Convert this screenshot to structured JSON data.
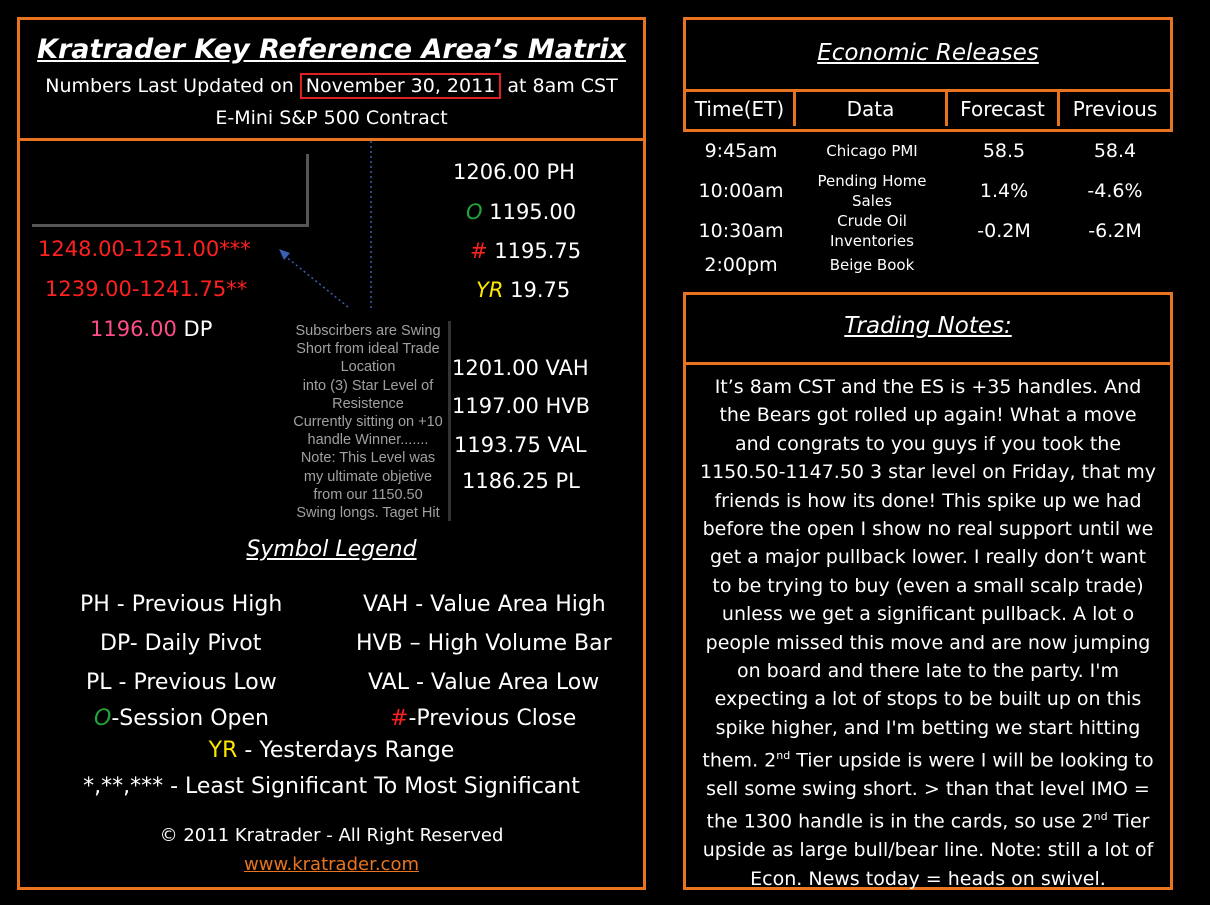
{
  "matrix": {
    "title": "Kratrader Key Reference Area’s Matrix",
    "updated_prefix": "Numbers Last Updated on",
    "updated_date": "November 30, 2011",
    "updated_suffix": "at 8am CST",
    "contract": "E-Mini S&P 500 Contract"
  },
  "levels_left": {
    "three_star": "1248.00-1251.00***",
    "two_star": "1239.00-1241.75**",
    "dp_value": "1196.00",
    "dp_label": "DP"
  },
  "levels_right": {
    "ph": "1206.00 PH",
    "o_sym": "O",
    "o_val": "1195.00",
    "hash_sym": "#",
    "hash_val": "1195.75",
    "yr_sym": "YR",
    "yr_val": "19.75",
    "vah": "1201.00 VAH",
    "hvb": "1197.00 HVB",
    "val": "1193.75 VAL",
    "pl": "1186.25 PL"
  },
  "annotation": [
    "Subscirbers are Swing",
    "Short from ideal Trade",
    "Location",
    "into (3) Star Level of",
    "Resistence",
    "Currently sitting on +10",
    "handle Winner.......",
    "Note: This Level was",
    "my ultimate objetive",
    "from our 1150.50",
    "Swing longs. Taget Hit"
  ],
  "legend": {
    "title": "Symbol Legend",
    "ph": "PH - Previous High",
    "dp": "DP- Daily Pivot",
    "pl": "PL - Previous Low",
    "o_sym": "O",
    "o_text": "-Session Open",
    "vah": "VAH - Value Area High",
    "hvb": "HVB – High Volume Bar",
    "val": "VAL - Value Area Low",
    "hash_sym": "#",
    "hash_text": "-Previous Close",
    "yr_sym": "YR",
    "yr_text": " - Yesterdays Range",
    "stars": "*,**,*** - Least Significant To Most Significant"
  },
  "footer": {
    "copyright": "© 2011 Kratrader - All Right Reserved",
    "url": "www.kratrader.com"
  },
  "economic": {
    "title": "Economic Releases",
    "headers": [
      "Time(ET)",
      "Data",
      "Forecast",
      "Previous"
    ],
    "rows": [
      {
        "time": "9:45am",
        "data": [
          "Chicago PMI"
        ],
        "forecast": "58.5",
        "previous": "58.4"
      },
      {
        "time": "10:00am",
        "data": [
          "Pending Home",
          "Sales"
        ],
        "forecast": "1.4%",
        "previous": "-4.6%"
      },
      {
        "time": "10:30am",
        "data": [
          "Crude Oil",
          "Inventories"
        ],
        "forecast": "-0.2M",
        "previous": "-6.2M"
      },
      {
        "time": "2:00pm",
        "data": [
          "Beige Book"
        ],
        "forecast": "",
        "previous": ""
      }
    ]
  },
  "notes": {
    "title": "Trading Notes:",
    "p1": "It’s 8am CST and the ES is +35 handles. And the Bears got rolled up again! What a move  and congrats to you guys if you took the 1150.50-1147.50 3 star level on Friday, that my friends is how its done! This spike up we had before the open I show no real support until we get a major pullback lower. I really don’t want to be trying to buy (even a small scalp trade) unless we get a significant pullback. A lot o people missed this move and are now jumping on board and there late to the party. I'm expecting a lot of stops to be built up on this spike higher, and I'm betting we start hitting them.  2",
    "sup1": "nd",
    "p2": " Tier upside is were I will be looking to sell some swing short. > than that level IMO = the 1300 handle is in the cards, so use 2",
    "sup2": "nd",
    "p3": " Tier upside as large bull/bear line. Note: still a lot of Econ. News today = heads on swivel."
  },
  "colors": {
    "border": "#e8741f",
    "red": "#ff2020",
    "green": "#22a33a",
    "yellow": "#ffe800",
    "pink": "#ff4d8a",
    "link": "#e8741f",
    "highlight_box": "#e02020"
  }
}
